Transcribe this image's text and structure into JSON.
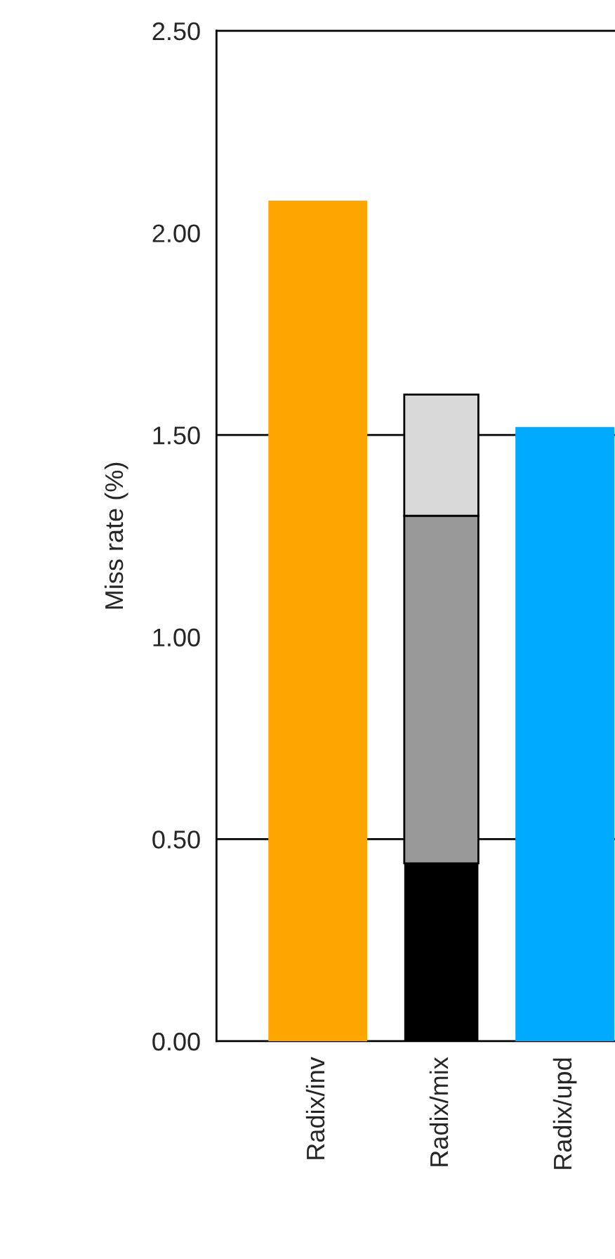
{
  "chart_data": {
    "type": "bar",
    "stacked": true,
    "ylabel": "Miss rate (%)",
    "categories": [
      "Radix/inv",
      "Radix/mix",
      "Radix/upd"
    ],
    "series": [
      {
        "colors": [
          "#ffa500",
          "#000000",
          "#00aaff"
        ],
        "values": [
          2.08,
          0.44,
          1.52
        ]
      },
      {
        "color": "#999999",
        "values": [
          null,
          0.86,
          null
        ]
      },
      {
        "color": "#d9d9d9",
        "values": [
          null,
          0.3,
          null
        ]
      }
    ],
    "ylim": [
      0,
      2.5
    ],
    "yticks": [
      {
        "value": 0,
        "label": "0.00"
      },
      {
        "value": 0.5,
        "label": "0.50"
      },
      {
        "value": 1,
        "label": "1.00"
      },
      {
        "value": 1.5,
        "label": "1.50"
      },
      {
        "value": 2,
        "label": "2.00"
      },
      {
        "value": 2.5,
        "label": "2.50"
      }
    ],
    "ref_lines": [
      {
        "axis": "y",
        "value": 0.5,
        "color": "#000000"
      },
      {
        "axis": "y",
        "value": 1.5,
        "color": "#000000"
      }
    ],
    "grid": false,
    "legend": false
  }
}
